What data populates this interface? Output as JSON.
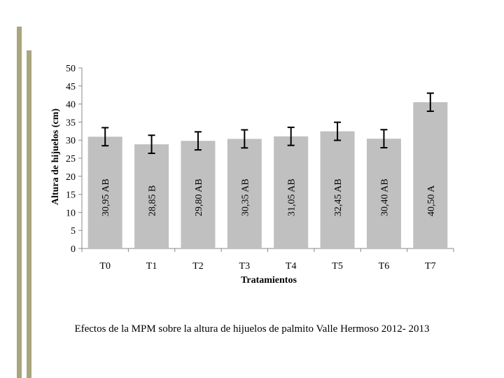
{
  "chart_data": {
    "type": "bar",
    "title": "",
    "xlabel": "Tratamientos",
    "ylabel": "Altura de hijuelos  (cm)",
    "ylim": [
      0,
      50
    ],
    "yticks": [
      0,
      5,
      10,
      15,
      20,
      25,
      30,
      35,
      40,
      45,
      50
    ],
    "categories": [
      "T0",
      "T1",
      "T2",
      "T3",
      "T4",
      "T5",
      "T6",
      "T7"
    ],
    "values": [
      30.95,
      28.85,
      29.8,
      30.35,
      31.05,
      32.45,
      30.4,
      40.5
    ],
    "error": [
      2.5,
      2.5,
      2.5,
      2.5,
      2.5,
      2.5,
      2.5,
      2.5
    ],
    "data_labels": [
      "30,95 AB",
      "28,85 B",
      "29,80 AB",
      "30,35 AB",
      "31,05 AB",
      "32,45 AB",
      "30,40 AB",
      "40,50  A"
    ],
    "bar_color": "#c0c0c0",
    "grid": false,
    "legend": "none"
  },
  "caption": "Efectos de la MPM sobre la altura de hijuelos de palmito Valle Hermoso 2012- 2013",
  "colors": {
    "accent": "#a9a57c"
  }
}
